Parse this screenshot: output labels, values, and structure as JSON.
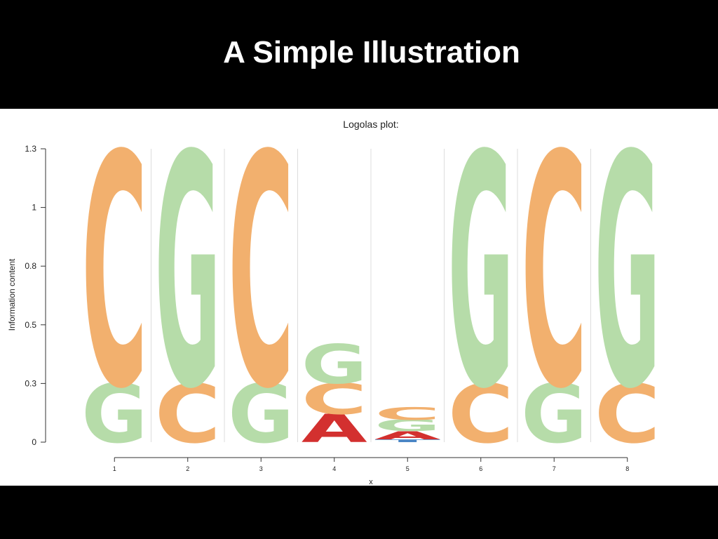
{
  "slide": {
    "title": "A Simple Illustration"
  },
  "chart_data": {
    "type": "logo",
    "title": "Logolas plot:",
    "x_label": "x",
    "y_label": "Information content",
    "x": [
      1,
      2,
      3,
      4,
      5,
      6,
      7,
      8
    ],
    "xlim": [
      0.5,
      8.5
    ],
    "xticks": [
      1,
      2,
      3,
      4,
      5,
      6,
      7,
      8
    ],
    "ylim": [
      0,
      1.3
    ],
    "yticks": [
      0,
      {
        "value": 0.26,
        "label": "0.3"
      },
      {
        "value": 0.52,
        "label": "0.5"
      },
      {
        "value": 0.78,
        "label": "0.8"
      },
      {
        "value": 1.04,
        "label": "1"
      },
      1.3
    ],
    "series": [
      {
        "name": "A",
        "color": "#d3302f",
        "values": [
          null,
          null,
          null,
          0.125,
          0.037,
          null,
          null,
          null
        ]
      },
      {
        "name": "C",
        "color": "#f2b06e",
        "values": [
          1.03,
          0.26,
          1.03,
          0.137,
          0.056,
          0.26,
          1.03,
          0.26
        ]
      },
      {
        "name": "G",
        "color": "#b6dca9",
        "values": [
          0.26,
          1.03,
          0.26,
          0.174,
          0.05,
          1.03,
          0.26,
          1.03
        ]
      },
      {
        "name": "T",
        "color": "#4a86c5",
        "values": [
          null,
          null,
          null,
          null,
          0.012,
          null,
          null,
          null
        ]
      }
    ]
  }
}
